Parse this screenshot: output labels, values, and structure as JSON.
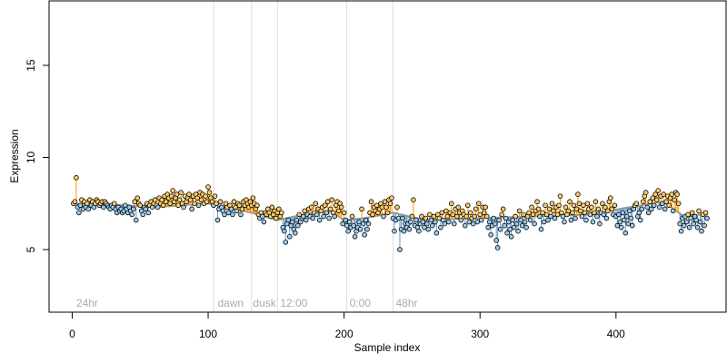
{
  "chart_data": {
    "type": "scatter",
    "xlabel": "Sample index",
    "ylabel": "Expression",
    "xlim": [
      -17,
      481
    ],
    "ylim": [
      1.6,
      18.5
    ],
    "x_ticks": [
      0,
      100,
      200,
      300,
      400
    ],
    "y_ticks": [
      5,
      10,
      15
    ],
    "grid": false,
    "fit_line_color": "#999999",
    "residual_colors": {
      "above": "#ff9900",
      "below": "#6699cc"
    },
    "point_fill": {
      "above": "#ffcc66",
      "below": "#99ccee"
    },
    "region_lines": {
      "color": "#dddddd",
      "x": [
        104,
        132,
        151,
        202,
        236
      ]
    },
    "region_labels": [
      {
        "text": "24hr",
        "x": 3
      },
      {
        "text": "dawn",
        "x": 107
      },
      {
        "text": "dusk",
        "x": 133
      },
      {
        "text": "12:00",
        "x": 153
      },
      {
        "text": "0:00",
        "x": 204
      },
      {
        "text": "48hr",
        "x": 238
      }
    ],
    "fit_anchors": [
      [
        1,
        7.5
      ],
      [
        40,
        7.4
      ],
      [
        60,
        7.3
      ],
      [
        100,
        7.5
      ],
      [
        132,
        7.0
      ],
      [
        151,
        6.6
      ],
      [
        170,
        6.9
      ],
      [
        190,
        7.1
      ],
      [
        200,
        6.6
      ],
      [
        215,
        6.7
      ],
      [
        236,
        7.0
      ],
      [
        260,
        6.6
      ],
      [
        300,
        6.7
      ],
      [
        340,
        6.8
      ],
      [
        380,
        6.9
      ],
      [
        410,
        7.3
      ],
      [
        435,
        7.6
      ],
      [
        450,
        6.8
      ],
      [
        462,
        6.9
      ]
    ],
    "series": [
      {
        "values": [
          7.5,
          7.6,
          8.9,
          7.3,
          7.0,
          7.4,
          7.7,
          7.2,
          7.6,
          7.3,
          7.5,
          7.2,
          7.7,
          7.4,
          7.6,
          7.3,
          7.5,
          7.7,
          7.6,
          7.4,
          7.5,
          7.6,
          7.3,
          7.6,
          7.5,
          7.4,
          7.3,
          7.2,
          7.4,
          7.3,
          7.5,
          7.2,
          7.0,
          7.3,
          7.1,
          7.2,
          7.0,
          7.1,
          7.4,
          7.2,
          7.0,
          7.3,
          7.1,
          6.9,
          7.2,
          7.6,
          6.6,
          7.8,
          7.5,
          7.4,
          7.1,
          6.9,
          7.3,
          7.2,
          7.5,
          7.0,
          7.4,
          7.6,
          7.3,
          7.5,
          7.7,
          7.4,
          7.3,
          7.8,
          7.5,
          7.7,
          7.4,
          7.9,
          7.6,
          8.0,
          7.8,
          7.5,
          7.9,
          8.2,
          7.6,
          7.8,
          8.0,
          7.4,
          7.7,
          8.1,
          7.5,
          7.3,
          7.9,
          7.6,
          7.8,
          8.0,
          7.7,
          7.2,
          7.9,
          7.5,
          8.0,
          7.8,
          7.4,
          8.1,
          7.7,
          8.0,
          7.5,
          7.9,
          7.6,
          8.4,
          8.1,
          7.8,
          7.6,
          7.4,
          7.9,
          7.5,
          6.6,
          7.2,
          7.6,
          7.3,
          7.1,
          6.9,
          7.5,
          7.3,
          7.0,
          7.4,
          7.2,
          6.9,
          7.6,
          7.3,
          7.1,
          7.5,
          7.4,
          6.9,
          7.2,
          7.6,
          7.4,
          7.7,
          7.5,
          7.3,
          7.6,
          7.4,
          7.8,
          7.5,
          7.2,
          7.4,
          6.9,
          6.7,
          7.0,
          6.8,
          6.5,
          7.0,
          6.9,
          7.2,
          7.0,
          6.8,
          7.3,
          6.9,
          7.1,
          6.7,
          7.0,
          7.2,
          6.8,
          7.0,
          6.2,
          6.0,
          5.4,
          6.4,
          6.6,
          5.7,
          6.3,
          6.5,
          6.1,
          5.9,
          6.6,
          6.3,
          6.9,
          6.5,
          6.7,
          6.8,
          7.1,
          6.6,
          6.9,
          7.2,
          6.8,
          7.3,
          6.7,
          7.0,
          7.5,
          6.9,
          7.2,
          6.6,
          7.1,
          7.3,
          6.8,
          7.4,
          7.0,
          7.6,
          6.7,
          7.2,
          7.7,
          7.0,
          6.8,
          7.4,
          7.6,
          7.1,
          7.5,
          7.3,
          6.4,
          7.0,
          6.6,
          6.3,
          6.0,
          6.5,
          6.2,
          6.8,
          6.3,
          5.7,
          6.0,
          6.2,
          6.5,
          6.1,
          7.2,
          6.4,
          5.8,
          6.6,
          6.1,
          6.4,
          7.0,
          7.6,
          6.9,
          7.3,
          7.1,
          7.4,
          7.0,
          7.2,
          7.5,
          7.3,
          6.8,
          7.6,
          7.3,
          7.0,
          7.7,
          7.5,
          7.8,
          6.7,
          6.0,
          6.6,
          7.3,
          6.7,
          5.0,
          6.1,
          6.7,
          6.0,
          6.4,
          6.2,
          6.4,
          6.1,
          6.5,
          6.8,
          7.7,
          6.3,
          6.6,
          6.2,
          6.0,
          6.4,
          6.8,
          6.5,
          6.2,
          6.7,
          6.4,
          6.1,
          6.9,
          6.6,
          6.3,
          6.8,
          6.5,
          5.9,
          6.9,
          6.7,
          6.2,
          7.0,
          6.6,
          6.4,
          7.1,
          6.8,
          6.5,
          7.0,
          7.5,
          6.9,
          6.4,
          7.2,
          6.8,
          7.3,
          7.0,
          6.6,
          7.1,
          6.9,
          6.3,
          6.8,
          7.4,
          6.5,
          7.0,
          6.7,
          6.4,
          6.8,
          7.2,
          6.5,
          7.5,
          6.9,
          6.6,
          7.3,
          7.0,
          7.3,
          6.8,
          6.2,
          6.5,
          5.8,
          6.3,
          6.7,
          6.4,
          5.5,
          5.1,
          6.6,
          6.1,
          6.9,
          7.2,
          6.3,
          6.7,
          5.9,
          6.5,
          6.1,
          5.7,
          6.6,
          6.2,
          6.8,
          6.4,
          6.0,
          7.1,
          6.6,
          6.3,
          6.9,
          6.5,
          6.2,
          6.8,
          7.0,
          6.6,
          7.3,
          6.9,
          6.4,
          7.1,
          7.6,
          7.2,
          6.8,
          6.1,
          7.0,
          6.5,
          7.4,
          6.9,
          6.6,
          7.2,
          6.8,
          7.5,
          7.1,
          6.7,
          7.3,
          6.9,
          7.4,
          7.9,
          7.0,
          6.8,
          6.5,
          7.3,
          6.9,
          7.1,
          7.6,
          6.6,
          7.0,
          7.4,
          6.7,
          7.2,
          8.0,
          7.5,
          7.1,
          6.8,
          7.4,
          7.0,
          6.6,
          7.5,
          7.2,
          6.9,
          7.3,
          6.5,
          7.0,
          7.6,
          6.8,
          7.2,
          6.4,
          7.0,
          7.5,
          6.9,
          7.3,
          6.7,
          7.1,
          7.6,
          7.8,
          7.2,
          6.9,
          7.4,
          6.8,
          6.3,
          6.9,
          6.5,
          6.2,
          7.0,
          6.6,
          5.9,
          6.8,
          6.4,
          7.1,
          6.7,
          6.3,
          7.2,
          7.4,
          7.5,
          6.8,
          7.0,
          6.6,
          7.2,
          7.6,
          7.9,
          8.1,
          7.3,
          7.0,
          7.6,
          7.2,
          7.8,
          7.4,
          8.0,
          7.7,
          8.2,
          7.3,
          7.9,
          7.5,
          8.0,
          7.2,
          7.6,
          7.9,
          7.4,
          7.8,
          8.0,
          7.1,
          7.7,
          8.1,
          8.0,
          7.5,
          6.4,
          6.0,
          6.7,
          6.3,
          6.8,
          6.5,
          6.9,
          6.2,
          6.7,
          7.0,
          6.4,
          6.8,
          6.6,
          6.2,
          7.1,
          6.5,
          6.0,
          6.9,
          6.3,
          7.0,
          6.7
        ]
      }
    ]
  }
}
